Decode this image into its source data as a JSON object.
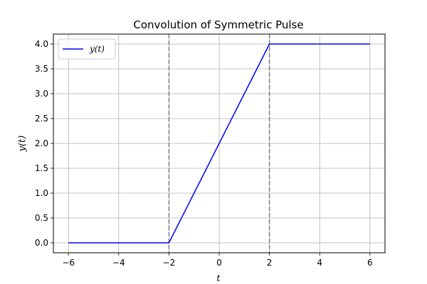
{
  "chart_data": {
    "type": "line",
    "title": "Convolution of Symmetric Pulse",
    "xlabel": "t",
    "ylabel": "y(t)",
    "xlim": [
      -6.6,
      6.6
    ],
    "ylim": [
      -0.2,
      4.2
    ],
    "xticks": [
      -6,
      -4,
      -2,
      0,
      2,
      4,
      6
    ],
    "xtick_labels": [
      "−6",
      "−4",
      "−2",
      "0",
      "2",
      "4",
      "6"
    ],
    "yticks": [
      0.0,
      0.5,
      1.0,
      1.5,
      2.0,
      2.5,
      3.0,
      3.5,
      4.0
    ],
    "ytick_labels": [
      "0.0",
      "0.5",
      "1.0",
      "1.5",
      "2.0",
      "2.5",
      "3.0",
      "3.5",
      "4.0"
    ],
    "grid": true,
    "legend_position": "top-left",
    "series": [
      {
        "name": "y(t)",
        "color": "#0000ff",
        "x": [
          -6,
          -2,
          2,
          6
        ],
        "y": [
          0,
          0,
          4,
          4
        ]
      }
    ],
    "vlines": [
      {
        "x": -2,
        "color": "#808080",
        "style": "dashed"
      },
      {
        "x": 2,
        "color": "#808080",
        "style": "dashed"
      }
    ]
  }
}
